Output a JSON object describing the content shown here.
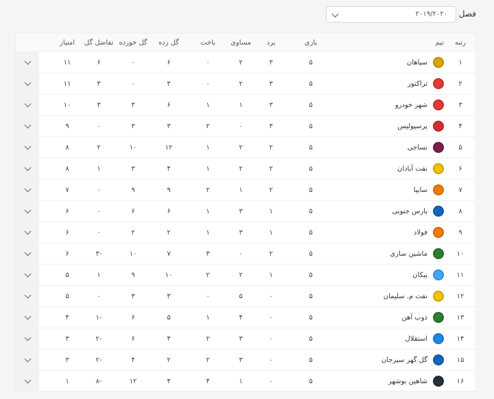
{
  "season": {
    "label": "فصل",
    "value": "۲۰۱۹/۲۰۲۰"
  },
  "columns": {
    "rank": "رتبه",
    "team": "تیم",
    "played": "بازی",
    "won": "برد",
    "draw": "مساوی",
    "loss": "باخت",
    "gf": "گل زده",
    "ga": "گل خورده",
    "gd": "تفاضل گل",
    "pts": "امتیاز"
  },
  "rows": [
    {
      "rank": "۱",
      "team": "سپاهان",
      "played": "۵",
      "won": "۳",
      "draw": "۲",
      "loss": "۰",
      "gf": "۶",
      "ga": "۰",
      "gd": "۶",
      "pts": "۱۱",
      "logo_color": "#d9a400",
      "logo_icon": "sepahan-logo"
    },
    {
      "rank": "۲",
      "team": "تراکتور",
      "played": "۵",
      "won": "۳",
      "draw": "۲",
      "loss": "۰",
      "gf": "۳",
      "ga": "۰",
      "gd": "۳",
      "pts": "۱۱",
      "logo_color": "#e53935",
      "logo_icon": "tractor-logo"
    },
    {
      "rank": "۳",
      "team": "شهر خودرو",
      "played": "۵",
      "won": "۳",
      "draw": "۱",
      "loss": "۱",
      "gf": "۶",
      "ga": "۳",
      "gd": "۳",
      "pts": "۱۰",
      "logo_color": "#e53935",
      "logo_icon": "shahr-khodro-logo"
    },
    {
      "rank": "۴",
      "team": "پرسپولیس",
      "played": "۵",
      "won": "۳",
      "draw": "۰",
      "loss": "۲",
      "gf": "۳",
      "ga": "۳",
      "gd": "۰",
      "pts": "۹",
      "logo_color": "#d32f2f",
      "logo_icon": "persepolis-logo"
    },
    {
      "rank": "۵",
      "team": "نساجی",
      "played": "۵",
      "won": "۲",
      "draw": "۲",
      "loss": "۱",
      "gf": "۱۲",
      "ga": "۱۰",
      "gd": "۲",
      "pts": "۸",
      "logo_color": "#7b1f4b",
      "logo_icon": "nassaji-logo"
    },
    {
      "rank": "۶",
      "team": "نفت آبادان",
      "played": "۵",
      "won": "۲",
      "draw": "۲",
      "loss": "۱",
      "gf": "۴",
      "ga": "۳",
      "gd": "۱",
      "pts": "۸",
      "logo_color": "#f2c200",
      "logo_icon": "naft-abadan-logo"
    },
    {
      "rank": "۷",
      "team": "سایپا",
      "played": "۵",
      "won": "۲",
      "draw": "۱",
      "loss": "۲",
      "gf": "۹",
      "ga": "۹",
      "gd": "۰",
      "pts": "۷",
      "logo_color": "#ef7d00",
      "logo_icon": "saipa-logo"
    },
    {
      "rank": "۸",
      "team": "پارس جنوبی",
      "played": "۵",
      "won": "۱",
      "draw": "۳",
      "loss": "۱",
      "gf": "۶",
      "ga": "۶",
      "gd": "۰",
      "pts": "۶",
      "logo_color": "#1565c0",
      "logo_icon": "pars-jonoubi-logo"
    },
    {
      "rank": "۹",
      "team": "فولاد",
      "played": "۵",
      "won": "۱",
      "draw": "۳",
      "loss": "۱",
      "gf": "۲",
      "ga": "۲",
      "gd": "۰",
      "pts": "۶",
      "logo_color": "#f57c00",
      "logo_icon": "foolad-logo"
    },
    {
      "rank": "۱۰",
      "team": "ماشین سازی",
      "played": "۵",
      "won": "۲",
      "draw": "۰",
      "loss": "۳",
      "gf": "۷",
      "ga": "۱۰",
      "gd": "-۳",
      "pts": "۶",
      "logo_color": "#2e7d32",
      "logo_icon": "machine-sazi-logo"
    },
    {
      "rank": "۱۱",
      "team": "پیکان",
      "played": "۵",
      "won": "۱",
      "draw": "۲",
      "loss": "۲",
      "gf": "۱۰",
      "ga": "۹",
      "gd": "۱",
      "pts": "۵",
      "logo_color": "#42a5f5",
      "logo_icon": "paykan-logo"
    },
    {
      "rank": "۱۲",
      "team": "نفت م. سلیمان",
      "played": "۵",
      "won": "۰",
      "draw": "۵",
      "loss": "۰",
      "gf": "۳",
      "ga": "۳",
      "gd": "۰",
      "pts": "۵",
      "logo_color": "#f2c200",
      "logo_icon": "naft-masjed-soleyman-logo"
    },
    {
      "rank": "۱۳",
      "team": "ذوب آهن",
      "played": "۵",
      "won": "۰",
      "draw": "۴",
      "loss": "۱",
      "gf": "۵",
      "ga": "۶",
      "gd": "-۱",
      "pts": "۴",
      "logo_color": "#2e7d32",
      "logo_icon": "zob-ahan-logo"
    },
    {
      "rank": "۱۴",
      "team": "استقلال",
      "played": "۵",
      "won": "۰",
      "draw": "۳",
      "loss": "۲",
      "gf": "۴",
      "ga": "۶",
      "gd": "-۲",
      "pts": "۳",
      "logo_color": "#1e88e5",
      "logo_icon": "esteghlal-logo"
    },
    {
      "rank": "۱۵",
      "team": "گل گهر سیرجان",
      "played": "۵",
      "won": "۰",
      "draw": "۳",
      "loss": "۲",
      "gf": "۲",
      "ga": "۴",
      "gd": "-۲",
      "pts": "۳",
      "logo_color": "#1565c0",
      "logo_icon": "gol-gohar-logo"
    },
    {
      "rank": "۱۶",
      "team": "شاهین بوشهر",
      "played": "۵",
      "won": "۰",
      "draw": "۱",
      "loss": "۴",
      "gf": "۴",
      "ga": "۱۲",
      "gd": "-۸",
      "pts": "۱",
      "logo_color": "#263238",
      "logo_icon": "shahin-bushehr-logo"
    }
  ]
}
